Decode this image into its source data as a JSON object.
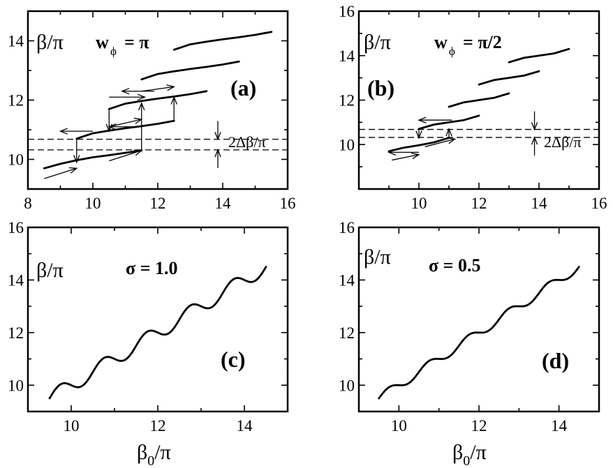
{
  "chart_data": [
    {
      "id": "a",
      "type": "line",
      "panel_label": "(a)",
      "ylabel": "β/π",
      "param_label": "w",
      "param_sub": "ϕ",
      "param_value": "= π",
      "gap_label": "2Δβ/π",
      "xlim": [
        8,
        16
      ],
      "ylim": [
        9,
        15
      ],
      "xticks": [
        8,
        10,
        12,
        14,
        16
      ],
      "yticks": [
        10,
        12,
        14
      ],
      "dashed_lines": [
        10.32,
        10.68
      ],
      "series": [
        {
          "name": "branch 1",
          "x": [
            8.5,
            9.0,
            9.5,
            10.0,
            10.5,
            11.0,
            11.5
          ],
          "y": [
            9.7,
            9.85,
            9.97,
            10.07,
            10.14,
            10.22,
            10.3
          ]
        },
        {
          "name": "branch 2",
          "x": [
            9.5,
            10.0,
            10.5,
            11.0,
            11.5,
            12.0,
            12.5
          ],
          "y": [
            10.7,
            10.88,
            10.97,
            11.05,
            11.12,
            11.2,
            11.3
          ]
        },
        {
          "name": "branch 3",
          "x": [
            10.5,
            11.0,
            11.5,
            12.0,
            12.5,
            13.0,
            13.5
          ],
          "y": [
            11.7,
            11.88,
            11.97,
            12.05,
            12.12,
            12.2,
            12.3
          ]
        },
        {
          "name": "branch 4",
          "x": [
            11.5,
            12.0,
            12.5,
            13.0,
            13.5,
            14.0,
            14.5
          ],
          "y": [
            12.7,
            12.88,
            12.97,
            13.05,
            13.12,
            13.2,
            13.3
          ]
        },
        {
          "name": "branch 5",
          "x": [
            12.5,
            13.0,
            13.5,
            14.0,
            14.5,
            15.0,
            15.5
          ],
          "y": [
            13.7,
            13.88,
            13.97,
            14.05,
            14.12,
            14.2,
            14.3
          ]
        }
      ],
      "jumps_up": [
        [
          11.5,
          10.3,
          11.9
        ],
        [
          12.5,
          11.3,
          12.1
        ]
      ],
      "jumps_down": [
        [
          9.5,
          10.7,
          9.9
        ],
        [
          10.5,
          11.7,
          10.95
        ]
      ],
      "diag_arrows_right": [
        [
          8.5,
          9.35,
          9.5,
          9.7
        ],
        [
          10.5,
          9.95,
          11.5,
          10.3
        ],
        [
          10.5,
          11.1,
          11.5,
          11.35
        ],
        [
          11.5,
          12.3,
          12.5,
          12.45
        ]
      ],
      "horiz_arrows_left": [
        [
          10.0,
          10.95,
          9.0
        ],
        [
          11.5,
          11.1,
          10.5
        ],
        [
          10.5,
          12.1,
          11.6
        ],
        [
          11.9,
          12.3,
          10.9
        ]
      ]
    },
    {
      "id": "b",
      "type": "line",
      "panel_label": "(b)",
      "ylabel": "β/π",
      "param_label": "w",
      "param_sub": "ϕ",
      "param_value": "= π/2",
      "gap_label": "2Δβ/π",
      "xlim": [
        8,
        16
      ],
      "ylim": [
        8,
        16
      ],
      "xticks": [
        10,
        12,
        14,
        16
      ],
      "yticks": [
        10,
        12,
        14,
        16
      ],
      "dashed_lines": [
        10.32,
        10.68
      ],
      "series": [
        {
          "name": "branch 1",
          "x": [
            9.0,
            9.5,
            10.0,
            10.5,
            11.0
          ],
          "y": [
            9.7,
            9.86,
            9.97,
            10.1,
            10.3
          ]
        },
        {
          "name": "branch 2",
          "x": [
            10.0,
            10.5,
            11.0,
            11.5,
            12.0
          ],
          "y": [
            10.7,
            10.9,
            11.0,
            11.1,
            11.3
          ]
        },
        {
          "name": "branch 3",
          "x": [
            11.0,
            11.5,
            12.0,
            12.5,
            13.0
          ],
          "y": [
            11.7,
            11.9,
            12.0,
            12.1,
            12.3
          ]
        },
        {
          "name": "branch 4",
          "x": [
            12.0,
            12.5,
            13.0,
            13.5,
            14.0
          ],
          "y": [
            12.7,
            12.9,
            13.0,
            13.1,
            13.3
          ]
        },
        {
          "name": "branch 5",
          "x": [
            13.0,
            13.5,
            14.0,
            14.5,
            15.0
          ],
          "y": [
            13.7,
            13.9,
            14.0,
            14.1,
            14.3
          ]
        }
      ],
      "jumps_up": [
        [
          11.0,
          10.3,
          10.7
        ]
      ],
      "jumps_down": [
        [
          10.0,
          10.7,
          10.3
        ]
      ],
      "diag_arrows_right": [
        [
          9.1,
          9.3,
          10.0,
          9.55
        ],
        [
          10.2,
          9.9,
          11.2,
          10.25
        ]
      ],
      "horiz_arrows_left": [
        [
          10.0,
          9.65,
          9.0
        ],
        [
          11.1,
          11.1,
          10.0
        ]
      ]
    },
    {
      "id": "c",
      "type": "line",
      "panel_label": "(c)",
      "ylabel": "β/π",
      "param_value": "σ = 1.0",
      "xlabel_main": "β",
      "xlabel_sub": "0",
      "xlabel_tail": "/π",
      "xlim": [
        9,
        15
      ],
      "ylim": [
        9,
        16
      ],
      "xticks": [
        10,
        12,
        14
      ],
      "yticks": [
        10,
        12,
        14,
        16
      ],
      "curve": {
        "x_start": 9.5,
        "x_end": 14.5,
        "amplitude": 0.28
      }
    },
    {
      "id": "d",
      "type": "line",
      "panel_label": "(d)",
      "ylabel": "β/π",
      "param_value": "σ = 0.5",
      "xlabel_main": "β",
      "xlabel_sub": "0",
      "xlabel_tail": "/π",
      "xlim": [
        9,
        15
      ],
      "ylim": [
        9,
        16
      ],
      "xticks": [
        10,
        12,
        14
      ],
      "yticks": [
        10,
        12,
        14,
        16
      ],
      "curve": {
        "x_start": 9.5,
        "x_end": 14.5,
        "amplitude": 0.17
      }
    }
  ]
}
